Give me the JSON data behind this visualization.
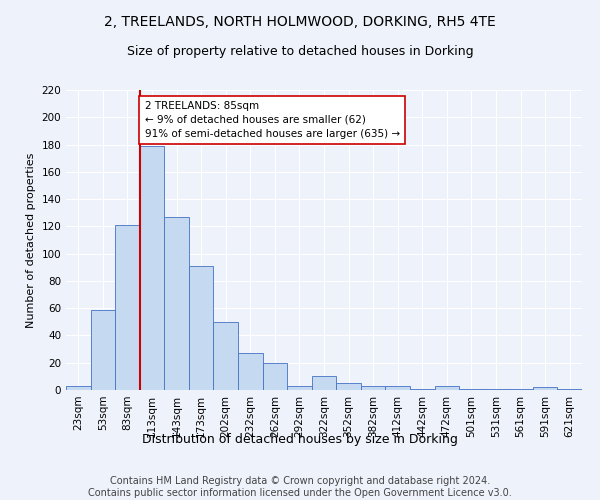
{
  "title": "2, TREELANDS, NORTH HOLMWOOD, DORKING, RH5 4TE",
  "subtitle": "Size of property relative to detached houses in Dorking",
  "xlabel": "Distribution of detached houses by size in Dorking",
  "ylabel": "Number of detached properties",
  "bin_labels": [
    "23sqm",
    "53sqm",
    "83sqm",
    "113sqm",
    "143sqm",
    "173sqm",
    "202sqm",
    "232sqm",
    "262sqm",
    "292sqm",
    "322sqm",
    "352sqm",
    "382sqm",
    "412sqm",
    "442sqm",
    "472sqm",
    "501sqm",
    "531sqm",
    "561sqm",
    "591sqm",
    "621sqm"
  ],
  "bar_values": [
    3,
    59,
    121,
    179,
    127,
    91,
    50,
    27,
    20,
    3,
    10,
    5,
    3,
    3,
    1,
    3,
    1,
    1,
    1,
    2,
    1
  ],
  "bar_color": "#c5d9f1",
  "bar_edge_color": "#4472c4",
  "vline_bin_index": 2,
  "vline_color": "#cc0000",
  "annotation_text": "2 TREELANDS: 85sqm\n← 9% of detached houses are smaller (62)\n91% of semi-detached houses are larger (635) →",
  "annotation_box_color": "#ffffff",
  "annotation_box_edge": "#cc0000",
  "ylim": [
    0,
    220
  ],
  "yticks": [
    0,
    20,
    40,
    60,
    80,
    100,
    120,
    140,
    160,
    180,
    200,
    220
  ],
  "footer_line1": "Contains HM Land Registry data © Crown copyright and database right 2024.",
  "footer_line2": "Contains public sector information licensed under the Open Government Licence v3.0.",
  "background_color": "#eef2fa",
  "grid_color": "#ffffff",
  "title_fontsize": 10,
  "subtitle_fontsize": 9,
  "xlabel_fontsize": 9,
  "ylabel_fontsize": 8,
  "tick_fontsize": 7.5,
  "footer_fontsize": 7,
  "annotation_fontsize": 7.5
}
